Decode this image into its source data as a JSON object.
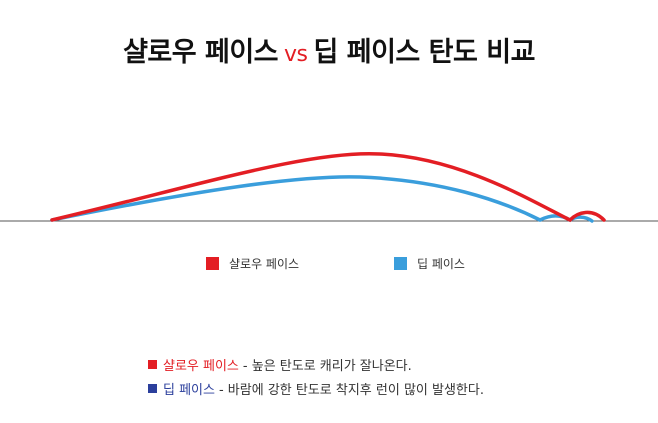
{
  "title": {
    "part1": "샬로우 페이스",
    "vs": "vs",
    "part2": "딥 페이스 탄도 비교"
  },
  "colors": {
    "shallow": "#e31e24",
    "deep": "#3a9edc",
    "ground": "#555555",
    "deep_note": "#2b3f9c"
  },
  "legend": {
    "shallow": "샬로우 페이스",
    "deep": "딥 페이스"
  },
  "notes": {
    "shallow": {
      "label": "샬로우 페이스",
      "text": " - 높은 탄도로 캐리가 잘나온다."
    },
    "deep": {
      "label": "딥 페이스",
      "text": " - 바람에 강한 탄도로 착지후 런이 많이 발생한다."
    }
  }
}
